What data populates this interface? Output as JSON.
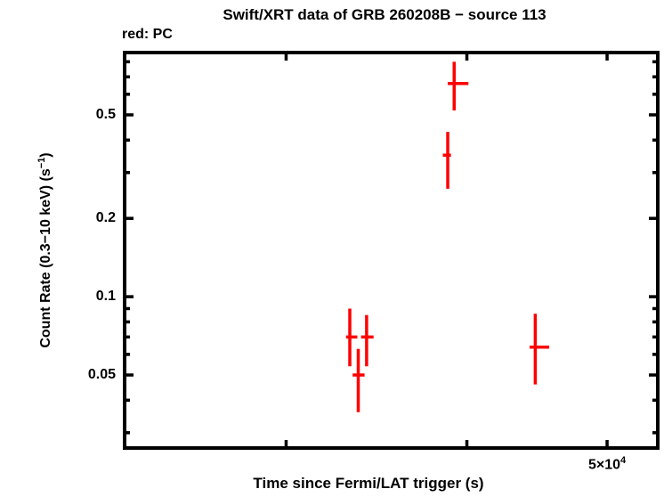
{
  "chart_data": {
    "type": "scatter",
    "title": "Swift/XRT data of GRB 260208B − source 113",
    "annotation": "red: PC",
    "xlabel": "Time since Fermi/LAT trigger (s)",
    "ylabel": "Count Rate (0.3−10 keV) (s⁻¹)",
    "x_scale": "log",
    "y_scale": "log",
    "xlim": [
      23200,
      54200
    ],
    "ylim": [
      0.0262,
      0.868
    ],
    "grid": false,
    "legend_position": "none",
    "x_axis": {
      "major_ticks": [
        30000,
        40000,
        50000
      ],
      "tick_label": {
        "value": 50000,
        "base": "5×10",
        "exp": "4"
      }
    },
    "y_axis": {
      "major_ticks": [
        0.5,
        0.2,
        0.1,
        0.05
      ],
      "tick_labels": [
        "0.5",
        "0.2",
        "0.1",
        "0.05"
      ],
      "minor_ticks": [
        0.8,
        0.7,
        0.6,
        0.4,
        0.3,
        0.09,
        0.08,
        0.07,
        0.06,
        0.04,
        0.03
      ],
      "label_parts": [
        "Count Rate (0.3−10 keV) (s",
        "−1",
        ")"
      ]
    },
    "series": [
      {
        "name": "PC",
        "color": "#ff0000",
        "points": [
          {
            "t": 33200,
            "t_lo": 33000,
            "t_hi": 33600,
            "rate": 0.07,
            "rate_lo": 0.054,
            "rate_hi": 0.09
          },
          {
            "t": 33650,
            "t_lo": 33350,
            "t_hi": 33990,
            "rate": 0.05,
            "rate_lo": 0.036,
            "rate_hi": 0.063
          },
          {
            "t": 34100,
            "t_lo": 33800,
            "t_hi": 34480,
            "rate": 0.07,
            "rate_lo": 0.054,
            "rate_hi": 0.085
          },
          {
            "t": 38800,
            "t_lo": 38500,
            "t_hi": 39000,
            "rate": 0.35,
            "rate_lo": 0.26,
            "rate_hi": 0.43
          },
          {
            "t": 39200,
            "t_lo": 38800,
            "t_hi": 40100,
            "rate": 0.66,
            "rate_lo": 0.52,
            "rate_hi": 0.8
          },
          {
            "t": 44600,
            "t_lo": 44200,
            "t_hi": 45600,
            "rate": 0.064,
            "rate_lo": 0.046,
            "rate_hi": 0.086
          }
        ]
      }
    ]
  }
}
